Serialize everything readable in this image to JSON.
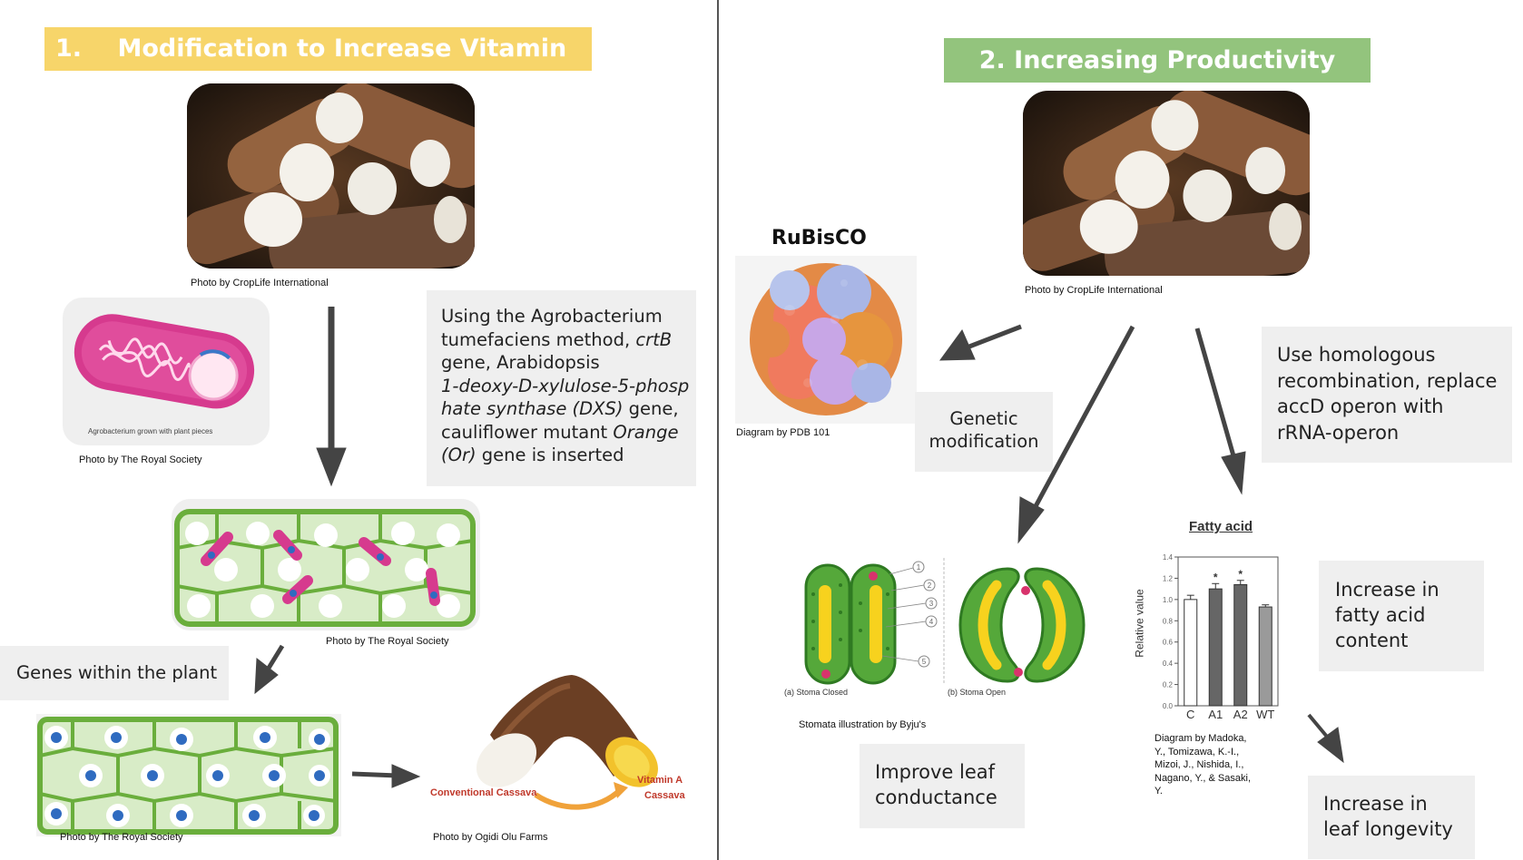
{
  "left": {
    "title_number": "1.",
    "title_text": "Modification to Increase Vitamin A",
    "title_color": "#f7d56a",
    "cassava_caption": "Photo by CropLife International",
    "agro_inner_label": "Agrobacterium grown with plant pieces",
    "agro_caption": "Photo by The Royal Society",
    "method_box": {
      "line1": "Using the Agrobacterium",
      "line2_pre": "tumefaciens method, ",
      "line2_em": "crtB",
      "line3": "gene, Arabidopsis",
      "line4_em": "1-deoxy-D-xylulose-5-phosp",
      "line5_em": "hate synthase (DXS)",
      "line5_post": " gene,",
      "line6_pre": "cauliflower mutant ",
      "line6_em": "Orange",
      "line7_em": "(Or)",
      "line7_post": " gene is inserted"
    },
    "cells_caption": "Photo by The Royal Society",
    "genes_box": "Genes within the plant",
    "cells2_caption": "Photo by The Royal Society",
    "result_label_conventional": "Conventional Cassava",
    "result_label_vitamin_line1": "Vitamin A",
    "result_label_vitamin_line2": "Cassava",
    "result_caption": "Photo by Ogidi Olu Farms"
  },
  "right": {
    "title_text": "2. Increasing Productivity",
    "title_color": "#93c47d",
    "cassava_caption": "Photo by CropLife International",
    "rubisco_title": "RuBisCO",
    "rubisco_caption": "Diagram  by PDB 101",
    "genetic_box_line1": "Genetic",
    "genetic_box_line2": "modification",
    "homologous_box": {
      "line1": "Use  homologous",
      "line2": "recombination, replace",
      "line3": "accD operon with",
      "line4": "rRNA-operon"
    },
    "stomata_labels": {
      "closed": "(a) Stoma Closed",
      "open": "(b) Stoma Open"
    },
    "stomata_numbers": [
      "1",
      "2",
      "3",
      "4",
      "5"
    ],
    "stomata_caption": "Stomata illustration  by Byju's",
    "leaf_box_line1": "Improve leaf",
    "leaf_box_line2": "conductance",
    "fatty_box_line1": "Increase in",
    "fatty_box_line2": "fatty acid",
    "fatty_box_line3": "content",
    "longevity_box_line1": "Increase in",
    "longevity_box_line2": "leaf longevity",
    "chart_caption_lines": [
      "Diagram by Madoka,",
      "Y., Tomizawa, K.-I.,",
      "Mizoi, J., Nishida, I.,",
      "Nagano, Y., & Sasaki,",
      "Y."
    ]
  },
  "chart_data": {
    "type": "bar",
    "title": "Fatty acid",
    "ylabel": "Relative value",
    "xlabel": "",
    "categories": [
      "C",
      "A1",
      "A2",
      "WT"
    ],
    "values": [
      1.0,
      1.1,
      1.14,
      0.93
    ],
    "errors": [
      0.04,
      0.05,
      0.04,
      0.02
    ],
    "significance": [
      "",
      "*",
      "*",
      ""
    ],
    "ylim": [
      0,
      1.4
    ],
    "yticks": [
      "0.0",
      "0.2",
      "0.4",
      "0.6",
      "0.8",
      "1.0",
      "1.2",
      "1.4"
    ],
    "bar_colors": [
      "#ffffff",
      "#666666",
      "#666666",
      "#9a9a9a"
    ]
  }
}
